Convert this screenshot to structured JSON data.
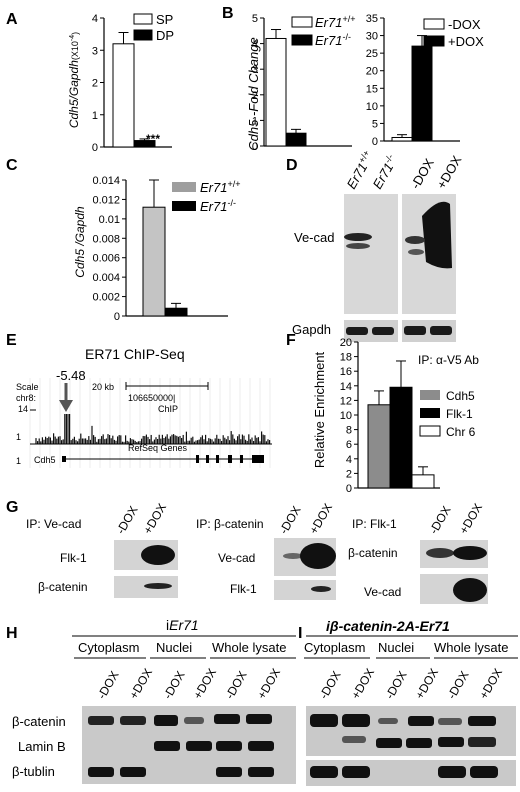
{
  "panels": {
    "A": {
      "label": "A",
      "ylabel_main": "Cdh5/Gapdh",
      "ylabel_unit": "(X10",
      "ylabel_exp": "-4",
      "ylabel_close": ")",
      "ticks": [
        "0",
        "1",
        "2",
        "3",
        "4"
      ],
      "legend": [
        "SP",
        "DP"
      ],
      "sig": "***"
    },
    "B": {
      "label": "B",
      "ylabel": "Cdh5 -Fold Change",
      "ticks_left": [
        "0",
        "1",
        "2",
        "3",
        "4",
        "5"
      ],
      "legend_left": [
        {
          "name": "Er71",
          "sup": "+/+"
        },
        {
          "name": "Er71",
          "sup": "-/-"
        }
      ],
      "ticks_right": [
        "0",
        "5",
        "10",
        "15",
        "20",
        "25",
        "30",
        "35"
      ],
      "legend_right": [
        "-DOX",
        "+DOX"
      ]
    },
    "C": {
      "label": "C",
      "ylabel": "Cdh5 /Gapdh",
      "ticks": [
        "0",
        "0.002",
        "0.004",
        "0.006",
        "0.008",
        "0.01",
        "0.012",
        "0.014"
      ],
      "legend": [
        {
          "name": "Er71",
          "sup": "+/+"
        },
        {
          "name": "Er71",
          "sup": "-/-"
        }
      ]
    },
    "D": {
      "label": "D",
      "lanes": [
        {
          "name": "Er71",
          "sup": "+/+"
        },
        {
          "name": "Er71",
          "sup": "-/-"
        },
        {
          "name": "-DOX",
          "sup": ""
        },
        {
          "name": "+DOX",
          "sup": ""
        }
      ],
      "rows": [
        "Ve-cad",
        "Gapdh"
      ]
    },
    "E": {
      "label": "E",
      "title": "ER71 ChIP-Seq",
      "peak_label": "-5.48",
      "scale_label": "Scale",
      "scale_value": "20 kb",
      "chr_label": "chr8:",
      "coord": "106650000|",
      "track_label": "ChIP",
      "y_top": "14",
      "y_bottom": "1",
      "y_bottom2": "1",
      "gene_track": "RefSeq Genes",
      "gene_name": "Cdh5"
    },
    "F": {
      "label": "F",
      "ip_label": "IP: α-V5 Ab",
      "ylabel": "Relative Enrichment",
      "ticks": [
        "0",
        "2",
        "4",
        "6",
        "8",
        "10",
        "12",
        "14",
        "16",
        "18",
        "20"
      ],
      "legend": [
        "Cdh5",
        "Flk-1",
        "Chr 6"
      ]
    },
    "G": {
      "label": "G",
      "blocks": [
        {
          "ip": "IP: Ve-cad",
          "lanes": [
            "-DOX",
            "+DOX"
          ],
          "rows": [
            "Flk-1",
            "β-catenin"
          ]
        },
        {
          "ip": "IP: β-catenin",
          "lanes": [
            "-DOX",
            "+DOX"
          ],
          "rows": [
            "Ve-cad",
            "Flk-1"
          ]
        },
        {
          "ip": "IP: Flk-1",
          "lanes": [
            "-DOX",
            "+DOX"
          ],
          "rows": [
            "β-catenin",
            "Ve-cad"
          ]
        }
      ]
    },
    "H": {
      "label": "H",
      "title_prefix": "i",
      "title_italic": "Er71",
      "fractions": [
        "Cytoplasm",
        "Nuclei",
        "Whole lysate"
      ],
      "lanes": [
        "-DOX",
        "+DOX",
        "-DOX",
        "+DOX",
        "-DOX",
        "+DOX"
      ],
      "rows": [
        "β-catenin",
        "Lamin B",
        "β-tublin"
      ]
    },
    "I": {
      "label": "I",
      "title": "iβ-catenin-2A-Er71",
      "fractions": [
        "Cytoplasm",
        "Nuclei",
        "Whole lysate"
      ],
      "lanes": [
        "-DOX",
        "+DOX",
        "-DOX",
        "+DOX",
        "-DOX",
        "+DOX"
      ]
    }
  },
  "chart_data": [
    {
      "panel": "A",
      "type": "bar",
      "categories": [
        "SP",
        "DP"
      ],
      "values": [
        3.2,
        0.2
      ],
      "errors": [
        0.35,
        0.05
      ],
      "ylabel": "Cdh5/Gapdh (X10-4)",
      "ylim": [
        0,
        4
      ],
      "colors": [
        "#ffffff",
        "#000000"
      ]
    },
    {
      "panel": "B-left",
      "type": "bar",
      "categories": [
        "Er71 +/+",
        "Er71 -/-"
      ],
      "values": [
        4.2,
        0.5
      ],
      "errors": [
        0.35,
        0.15
      ],
      "ylabel": "Cdh5 -Fold Change",
      "ylim": [
        0,
        5
      ],
      "colors": [
        "#ffffff",
        "#000000"
      ]
    },
    {
      "panel": "B-right",
      "type": "bar",
      "categories": [
        "-DOX",
        "+DOX"
      ],
      "values": [
        1.0,
        27.0
      ],
      "errors": [
        0.8,
        3.0
      ],
      "ylim": [
        0,
        35
      ],
      "colors": [
        "#ffffff",
        "#000000"
      ]
    },
    {
      "panel": "C",
      "type": "bar",
      "categories": [
        "Er71 +/+",
        "Er71 -/-"
      ],
      "values": [
        0.0112,
        0.0008
      ],
      "errors": [
        0.0028,
        0.0005
      ],
      "ylabel": "Cdh5 /Gapdh",
      "ylim": [
        0,
        0.014
      ],
      "colors": [
        "#c4c4c4",
        "#000000"
      ]
    },
    {
      "panel": "F",
      "type": "bar",
      "categories": [
        "Cdh5",
        "Flk-1",
        "Chr 6"
      ],
      "values": [
        11.4,
        13.8,
        1.8
      ],
      "errors": [
        1.9,
        3.6,
        1.1
      ],
      "ylabel": "Relative Enrichment",
      "ylim": [
        0,
        20
      ],
      "colors": [
        "#8c8c8c",
        "#000000",
        "#ffffff"
      ]
    }
  ]
}
